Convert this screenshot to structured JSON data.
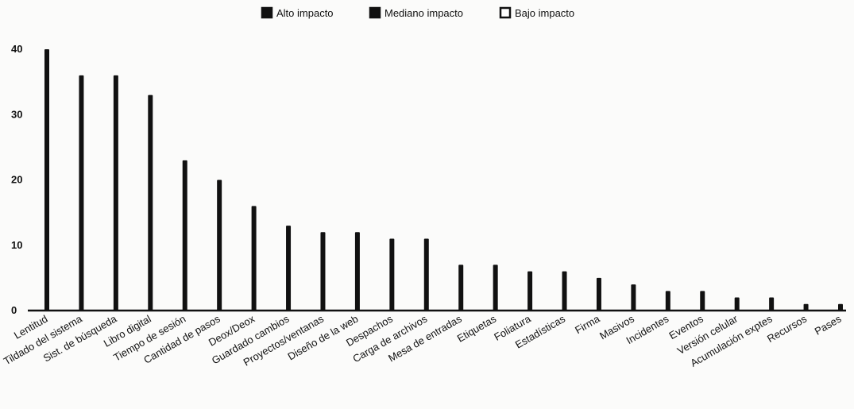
{
  "chart_data": {
    "type": "bar",
    "title": "",
    "xlabel": "",
    "ylabel": "",
    "ylim": [
      0,
      40
    ],
    "yticks": [
      0,
      10,
      20,
      30,
      40
    ],
    "grid": false,
    "legend_position": "top-center",
    "legend": [
      {
        "name": "Alto impacto",
        "color": "#111111"
      },
      {
        "name": "Mediano impacto",
        "color": "#111111"
      },
      {
        "name": "Bajo impacto",
        "color": "#111111"
      }
    ],
    "categories": [
      "Lentitud",
      "Tildado del sistema",
      "Sist. de búsqueda",
      "Libro digital",
      "Tiempo de sesión",
      "Cantidad de pasos",
      "Deox/Deox",
      "Guardado cambios",
      "Proyectos/ventanas",
      "Diseño de la web",
      "Despachos",
      "Carga de archivos",
      "Mesa de entradas",
      "Etiquetas",
      "Foliatura",
      "Estadísticas",
      "Firma",
      "Masivos",
      "Incidentes",
      "Eventos",
      "Versión celular",
      "Acumulación exptes",
      "Recursos",
      "Pases"
    ],
    "values": [
      40,
      36,
      36,
      33,
      23,
      20,
      16,
      13,
      12,
      12,
      11,
      11,
      7,
      7,
      6,
      6,
      5,
      4,
      3,
      3,
      2,
      2,
      1,
      1
    ],
    "bar_color": "#111111"
  }
}
